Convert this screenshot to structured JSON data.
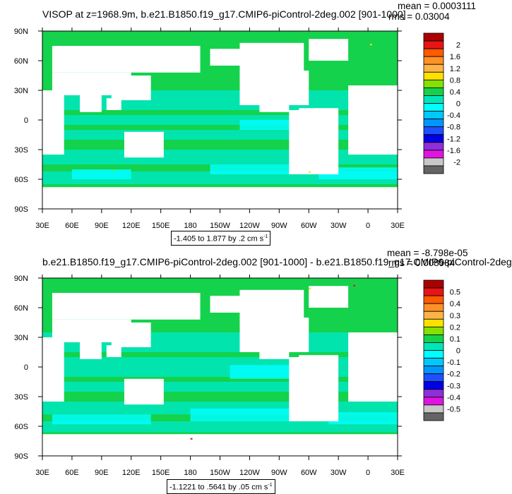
{
  "panels": [
    {
      "title": "VISOP at z=1968.9m, b.e21.B1850.f19_g17.CMIP6-piControl-2deg.002 [901-1000]",
      "mean_text": "mean = 0.0003111",
      "rms_text": "rms = 0.03004",
      "range_text": "-1.405 to 1.877 by .2 cm s",
      "range_unit_exp": "-1",
      "levels": [
        "2",
        "1.6",
        "1.2",
        "0.8",
        "0.4",
        "0",
        "-0.4",
        "-0.8",
        "-1.2",
        "-1.6",
        "-2"
      ]
    },
    {
      "title": "b.e21.B1850.f19_g17.CMIP6-piControl-2deg.002 [901-1000] - b.e21.B1850.f19_g17.CMIP6-piControl-2deg",
      "mean_text": "mean = -8.798e-05",
      "rms_text": "rms = 0.008984",
      "range_text": "-1.1221 to .5641 by .05 cm s",
      "range_unit_exp": "-1",
      "levels": [
        "0.5",
        "0.4",
        "0.3",
        "0.2",
        "0.1",
        "0",
        "-0.1",
        "-0.2",
        "-0.3",
        "-0.4",
        "-0.5"
      ]
    }
  ],
  "chart_data": [
    {
      "type": "heatmap",
      "title": "VISOP at z=1968.9m, b.e21.B1850.f19_g17.CMIP6-piControl-2deg.002 [901-1000]",
      "x_tick_labels": [
        "30E",
        "60E",
        "90E",
        "120E",
        "150E",
        "180",
        "150W",
        "120W",
        "90W",
        "60W",
        "30W",
        "0",
        "30E"
      ],
      "y_tick_labels": [
        "90N",
        "60N",
        "30N",
        "0",
        "30S",
        "60S",
        "90S"
      ],
      "xlim": [
        30,
        390
      ],
      "ylim": [
        -90,
        90
      ],
      "colorbar_levels": [
        2,
        1.6,
        1.2,
        0.8,
        0.4,
        0,
        -0.4,
        -0.8,
        -1.2,
        -1.6,
        -2
      ],
      "mean": 0.0003111,
      "rms": 0.03004,
      "contour_min": -1.405,
      "contour_max": 1.877,
      "contour_interval": 0.2,
      "units": "cm s-1",
      "colors": [
        "#aa0000",
        "#e81515",
        "#ff5a00",
        "#ff9125",
        "#ffb347",
        "#ffe100",
        "#86e000",
        "#14d24c",
        "#00e6b8",
        "#00ffff",
        "#00c8ff",
        "#0096ff",
        "#1e50ff",
        "#0000e6",
        "#8e2fd8",
        "#e014e0",
        "#c8c8c8",
        "#646464"
      ]
    },
    {
      "type": "heatmap",
      "title": "b.e21.B1850.f19_g17.CMIP6-piControl-2deg.002 [901-1000] - b.e21.B1850.f19_g17.CMIP6-piControl-2deg",
      "x_tick_labels": [
        "30E",
        "60E",
        "90E",
        "120E",
        "150E",
        "180",
        "150W",
        "120W",
        "90W",
        "60W",
        "30W",
        "0",
        "30E"
      ],
      "y_tick_labels": [
        "90N",
        "60N",
        "30N",
        "0",
        "30S",
        "60S",
        "90S"
      ],
      "xlim": [
        30,
        390
      ],
      "ylim": [
        -90,
        90
      ],
      "colorbar_levels": [
        0.5,
        0.4,
        0.3,
        0.2,
        0.1,
        0,
        -0.1,
        -0.2,
        -0.3,
        -0.4,
        -0.5
      ],
      "mean": -8.798e-05,
      "rms": 0.008984,
      "contour_min": -1.1221,
      "contour_max": 0.5641,
      "contour_interval": 0.05,
      "units": "cm s-1",
      "colors": [
        "#aa0000",
        "#e81515",
        "#ff5a00",
        "#ff9125",
        "#ffb347",
        "#ffe100",
        "#86e000",
        "#14d24c",
        "#00e6b8",
        "#00ffff",
        "#00c8ff",
        "#0096ff",
        "#1e50ff",
        "#0000e6",
        "#8e2fd8",
        "#e014e0",
        "#c8c8c8",
        "#646464"
      ]
    }
  ]
}
